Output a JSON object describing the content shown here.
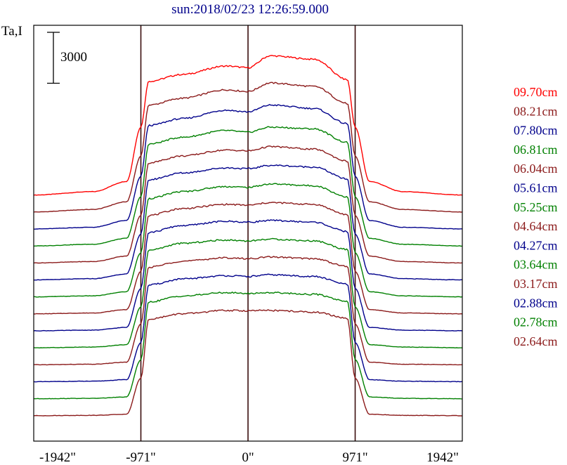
{
  "chart_data": {
    "type": "line",
    "title": "sun:2018/02/23 12:26:59.000",
    "ylabel": "Ta,I",
    "xlabel": "",
    "scale_bar_label": "3000",
    "scale_bar_value": 3000,
    "x_ticks": [
      {
        "value": -1942,
        "label": "-1942\""
      },
      {
        "value": -971,
        "label": "-971\""
      },
      {
        "value": 0,
        "label": "0\""
      },
      {
        "value": 971,
        "label": "971\""
      },
      {
        "value": 1942,
        "label": "1942\""
      }
    ],
    "vertical_lines": [
      -971,
      0,
      971
    ],
    "xlim": [
      -1942,
      1942
    ],
    "grid": false,
    "legend_placement": "right",
    "series": [
      {
        "name": "09.70cm",
        "color": "#ff0000",
        "limb_sharpness": 0.55,
        "x": [
          -1942,
          -1400,
          -1100,
          -971,
          -900,
          -600,
          -200,
          0,
          200,
          600,
          900,
          971,
          1100,
          1400,
          1942
        ],
        "y": [
          14500,
          14700,
          15300,
          18500,
          21200,
          21600,
          22100,
          22000,
          22700,
          22500,
          21300,
          18500,
          15300,
          14700,
          14500
        ]
      },
      {
        "name": "08.21cm",
        "color": "#8b1a1a",
        "limb_sharpness": 0.65,
        "x": [
          -1942,
          -1400,
          -1100,
          -971,
          -900,
          -600,
          -200,
          0,
          200,
          600,
          900,
          971,
          1100,
          1400,
          1942
        ],
        "y": [
          13500,
          13650,
          14100,
          16800,
          19800,
          20200,
          20700,
          20600,
          21100,
          20900,
          19900,
          16800,
          14100,
          13650,
          13500
        ]
      },
      {
        "name": "07.80cm",
        "color": "#00008b",
        "limb_sharpness": 0.7,
        "x": [
          -1942,
          -1400,
          -1100,
          -971,
          -900,
          -600,
          -200,
          0,
          200,
          600,
          900,
          971,
          1100,
          1400,
          1942
        ],
        "y": [
          12500,
          12600,
          13000,
          15600,
          18600,
          19000,
          19500,
          19400,
          19800,
          19600,
          18700,
          15600,
          13000,
          12600,
          12500
        ]
      },
      {
        "name": "06.81cm",
        "color": "#008000",
        "limb_sharpness": 0.75,
        "x": [
          -1942,
          -1400,
          -1100,
          -971,
          -900,
          -600,
          -200,
          0,
          200,
          600,
          900,
          971,
          1100,
          1400,
          1942
        ],
        "y": [
          11500,
          11600,
          11950,
          14400,
          17500,
          17900,
          18300,
          18200,
          18500,
          18400,
          17600,
          14400,
          11950,
          11600,
          11500
        ]
      },
      {
        "name": "06.04cm",
        "color": "#8b1a1a",
        "limb_sharpness": 0.8,
        "x": [
          -1942,
          -1400,
          -1100,
          -971,
          -900,
          -600,
          -200,
          0,
          200,
          600,
          900,
          971,
          1100,
          1400,
          1942
        ],
        "y": [
          10500,
          10580,
          10900,
          13300,
          16400,
          16800,
          17150,
          17100,
          17350,
          17200,
          16500,
          13300,
          10900,
          10580,
          10500
        ]
      },
      {
        "name": "05.61cm",
        "color": "#00008b",
        "limb_sharpness": 0.85,
        "x": [
          -1942,
          -1400,
          -1100,
          -971,
          -900,
          -600,
          -200,
          0,
          200,
          600,
          900,
          971,
          1100,
          1400,
          1942
        ],
        "y": [
          9500,
          9570,
          9850,
          12200,
          15400,
          15800,
          16100,
          16050,
          16250,
          16150,
          15450,
          12200,
          9850,
          9570,
          9500
        ]
      },
      {
        "name": "05.25cm",
        "color": "#008000",
        "limb_sharpness": 0.9,
        "x": [
          -1942,
          -1400,
          -1100,
          -971,
          -900,
          -600,
          -200,
          0,
          200,
          600,
          900,
          971,
          1100,
          1400,
          1942
        ],
        "y": [
          8500,
          8560,
          8800,
          11100,
          14300,
          14700,
          15000,
          14950,
          15150,
          15050,
          14400,
          11100,
          8800,
          8560,
          8500
        ]
      },
      {
        "name": "04.64cm",
        "color": "#8b1a1a",
        "limb_sharpness": 0.95,
        "x": [
          -1942,
          -1400,
          -1100,
          -971,
          -900,
          -600,
          -200,
          0,
          200,
          600,
          900,
          971,
          1100,
          1400,
          1942
        ],
        "y": [
          7500,
          7550,
          7750,
          10000,
          13300,
          13700,
          13950,
          13900,
          14050,
          13950,
          13350,
          10000,
          7750,
          7550,
          7500
        ]
      },
      {
        "name": "04.27cm",
        "color": "#00008b",
        "limb_sharpness": 1.0,
        "x": [
          -1942,
          -1400,
          -1100,
          -971,
          -900,
          -600,
          -200,
          0,
          200,
          600,
          900,
          971,
          1100,
          1400,
          1942
        ],
        "y": [
          6500,
          6540,
          6700,
          9000,
          12300,
          12700,
          12950,
          12900,
          13000,
          12900,
          12350,
          9000,
          6700,
          6540,
          6500
        ]
      },
      {
        "name": "03.64cm",
        "color": "#008000",
        "limb_sharpness": 1.05,
        "x": [
          -1942,
          -1400,
          -1100,
          -971,
          -900,
          -600,
          -200,
          0,
          200,
          600,
          900,
          971,
          1100,
          1400,
          1942
        ],
        "y": [
          5500,
          5540,
          5680,
          7900,
          11250,
          11650,
          11850,
          11800,
          11900,
          11800,
          11300,
          7900,
          5680,
          5540,
          5500
        ]
      },
      {
        "name": "03.17cm",
        "color": "#8b1a1a",
        "limb_sharpness": 1.1,
        "x": [
          -1942,
          -1400,
          -1100,
          -971,
          -900,
          -600,
          -200,
          0,
          200,
          600,
          900,
          971,
          1100,
          1400,
          1942
        ],
        "y": [
          4500,
          4530,
          4650,
          6900,
          10250,
          10600,
          10800,
          10750,
          10850,
          10750,
          10300,
          6900,
          4650,
          4530,
          4500
        ]
      },
      {
        "name": "02.88cm",
        "color": "#00008b",
        "limb_sharpness": 1.15,
        "x": [
          -1942,
          -1400,
          -1100,
          -971,
          -900,
          -600,
          -200,
          0,
          200,
          600,
          900,
          971,
          1100,
          1400,
          1942
        ],
        "y": [
          3500,
          3530,
          3620,
          5800,
          9200,
          9550,
          9750,
          9700,
          9800,
          9700,
          9250,
          5800,
          3620,
          3530,
          3500
        ]
      },
      {
        "name": "02.78cm",
        "color": "#008000",
        "limb_sharpness": 1.2,
        "x": [
          -1942,
          -1400,
          -1100,
          -971,
          -900,
          -600,
          -200,
          0,
          200,
          600,
          900,
          971,
          1100,
          1400,
          1942
        ],
        "y": [
          2500,
          2520,
          2600,
          4800,
          8200,
          8550,
          8750,
          8700,
          8750,
          8650,
          8250,
          4800,
          2600,
          2520,
          2500
        ]
      },
      {
        "name": "02.64cm",
        "color": "#8b1a1a",
        "limb_sharpness": 1.25,
        "x": [
          -1942,
          -1400,
          -1100,
          -971,
          -900,
          -600,
          -200,
          0,
          200,
          600,
          900,
          971,
          1100,
          1400,
          1942
        ],
        "y": [
          1500,
          1520,
          1580,
          3700,
          7200,
          7500,
          7700,
          7680,
          7700,
          7600,
          7250,
          3700,
          1580,
          1520,
          1500
        ]
      }
    ],
    "ylim": [
      0,
      24500
    ]
  }
}
